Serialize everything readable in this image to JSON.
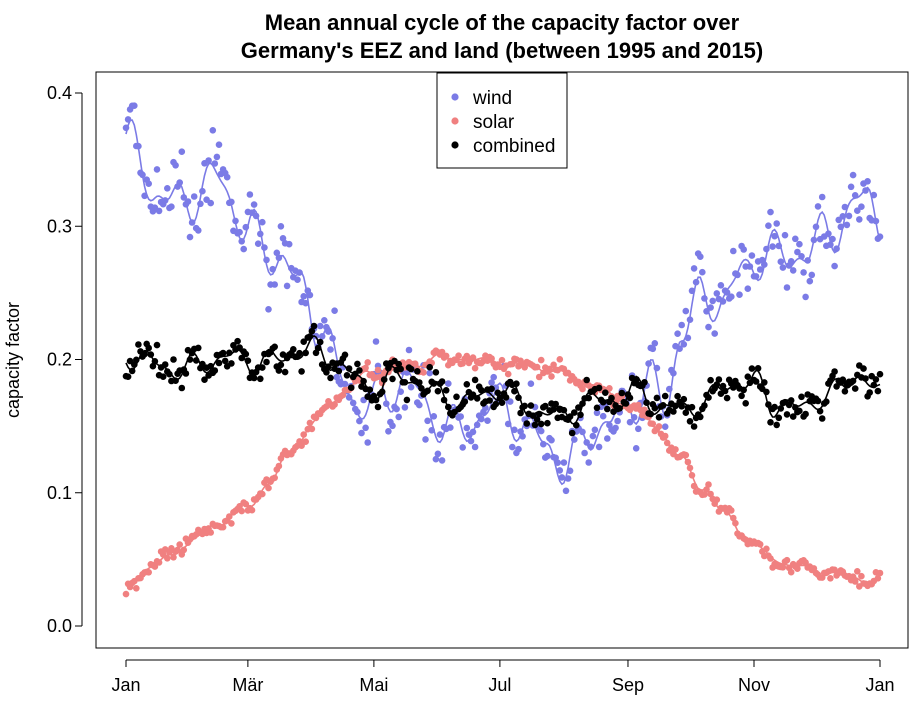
{
  "chart_data": {
    "type": "scatter",
    "title": [
      "Mean annual cycle of the capacity factor over",
      "Germany's EEZ and land (between 1995 and 2015)"
    ],
    "xlabel": "",
    "ylabel": "capacity factor",
    "xlim": [
      1,
      366
    ],
    "ylim": [
      0.0,
      0.4
    ],
    "y_ticks": [
      0.0,
      0.1,
      0.2,
      0.3,
      0.4
    ],
    "y_tick_labels": [
      "0.0",
      "0.1",
      "0.2",
      "0.3",
      "0.4"
    ],
    "x_ticks": [
      1,
      60,
      121,
      182,
      244,
      305,
      366
    ],
    "x_tick_labels": [
      "Jan",
      "Mär",
      "Mai",
      "Jul",
      "Sep",
      "Nov",
      "Jan"
    ],
    "legend_position": "top-center",
    "series": [
      {
        "name": "wind",
        "color": "#7B7BE6",
        "smooth_line": true,
        "anchors": [
          [
            1,
            0.36
          ],
          [
            15,
            0.33
          ],
          [
            30,
            0.32
          ],
          [
            45,
            0.33
          ],
          [
            60,
            0.3
          ],
          [
            75,
            0.28
          ],
          [
            85,
            0.25
          ],
          [
            95,
            0.22
          ],
          [
            105,
            0.19
          ],
          [
            115,
            0.17
          ],
          [
            125,
            0.17
          ],
          [
            135,
            0.18
          ],
          [
            150,
            0.16
          ],
          [
            165,
            0.15
          ],
          [
            175,
            0.16
          ],
          [
            185,
            0.16
          ],
          [
            195,
            0.15
          ],
          [
            205,
            0.14
          ],
          [
            215,
            0.12
          ],
          [
            225,
            0.14
          ],
          [
            235,
            0.15
          ],
          [
            244,
            0.17
          ],
          [
            255,
            0.19
          ],
          [
            262,
            0.16
          ],
          [
            270,
            0.22
          ],
          [
            280,
            0.24
          ],
          [
            290,
            0.25
          ],
          [
            300,
            0.27
          ],
          [
            310,
            0.28
          ],
          [
            320,
            0.27
          ],
          [
            330,
            0.28
          ],
          [
            340,
            0.3
          ],
          [
            350,
            0.31
          ],
          [
            360,
            0.32
          ],
          [
            366,
            0.3
          ]
        ],
        "wiggle": 0.022,
        "scatter": 0.028
      },
      {
        "name": "solar",
        "color": "#F08080",
        "smooth_line": true,
        "anchors": [
          [
            1,
            0.032
          ],
          [
            15,
            0.045
          ],
          [
            30,
            0.06
          ],
          [
            45,
            0.078
          ],
          [
            60,
            0.09
          ],
          [
            70,
            0.105
          ],
          [
            80,
            0.13
          ],
          [
            90,
            0.15
          ],
          [
            100,
            0.168
          ],
          [
            110,
            0.18
          ],
          [
            120,
            0.19
          ],
          [
            135,
            0.195
          ],
          [
            150,
            0.2
          ],
          [
            165,
            0.2
          ],
          [
            180,
            0.198
          ],
          [
            195,
            0.195
          ],
          [
            210,
            0.19
          ],
          [
            220,
            0.185
          ],
          [
            230,
            0.178
          ],
          [
            240,
            0.17
          ],
          [
            250,
            0.16
          ],
          [
            260,
            0.145
          ],
          [
            270,
            0.125
          ],
          [
            280,
            0.105
          ],
          [
            290,
            0.085
          ],
          [
            300,
            0.068
          ],
          [
            310,
            0.055
          ],
          [
            320,
            0.048
          ],
          [
            335,
            0.04
          ],
          [
            350,
            0.036
          ],
          [
            366,
            0.035
          ]
        ],
        "wiggle": 0.004,
        "scatter": 0.007
      },
      {
        "name": "combined",
        "color": "#000000",
        "smooth_line": true,
        "anchors": [
          [
            1,
            0.2
          ],
          [
            30,
            0.195
          ],
          [
            60,
            0.2
          ],
          [
            90,
            0.205
          ],
          [
            100,
            0.2
          ],
          [
            110,
            0.19
          ],
          [
            120,
            0.18
          ],
          [
            135,
            0.185
          ],
          [
            150,
            0.175
          ],
          [
            165,
            0.17
          ],
          [
            180,
            0.175
          ],
          [
            195,
            0.165
          ],
          [
            210,
            0.16
          ],
          [
            225,
            0.165
          ],
          [
            240,
            0.17
          ],
          [
            250,
            0.18
          ],
          [
            260,
            0.165
          ],
          [
            270,
            0.16
          ],
          [
            280,
            0.165
          ],
          [
            295,
            0.185
          ],
          [
            305,
            0.185
          ],
          [
            315,
            0.165
          ],
          [
            325,
            0.16
          ],
          [
            340,
            0.175
          ],
          [
            355,
            0.19
          ],
          [
            366,
            0.17
          ]
        ],
        "wiggle": 0.012,
        "scatter": 0.014
      }
    ]
  }
}
